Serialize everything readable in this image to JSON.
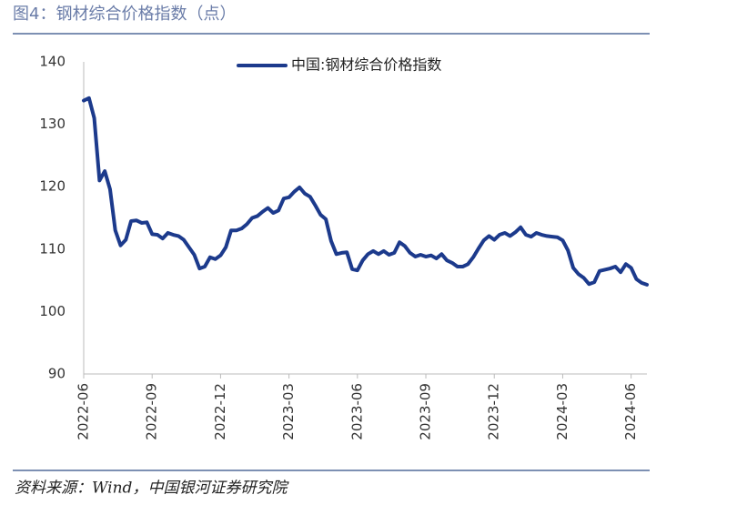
{
  "chart_data": {
    "type": "line",
    "title": "图4：钢材综合价格指数（点）",
    "source": "资料来源：Wind，中国银河证券研究院",
    "categories": [
      "2022-06",
      null,
      null,
      null,
      null,
      null,
      null,
      null,
      null,
      null,
      null,
      null,
      null,
      "2022-09",
      null,
      null,
      null,
      null,
      null,
      null,
      null,
      null,
      null,
      null,
      null,
      null,
      "2022-12",
      null,
      null,
      null,
      null,
      null,
      null,
      null,
      null,
      null,
      null,
      null,
      null,
      "2023-03",
      null,
      null,
      null,
      null,
      null,
      null,
      null,
      null,
      null,
      null,
      null,
      null,
      "2023-06",
      null,
      null,
      null,
      null,
      null,
      null,
      null,
      null,
      null,
      null,
      null,
      null,
      "2023-09",
      null,
      null,
      null,
      null,
      null,
      null,
      null,
      null,
      null,
      null,
      null,
      null,
      "2023-12",
      null,
      null,
      null,
      null,
      null,
      null,
      null,
      null,
      null,
      null,
      null,
      null,
      "2024-03",
      null,
      null,
      null,
      null,
      null,
      null,
      null,
      null,
      null,
      null,
      null,
      null,
      "2024-06",
      null,
      null,
      null
    ],
    "series": [
      {
        "name": "中国:钢材综合价格指数",
        "color": "#1c3a8c",
        "values": [
          133.8,
          134.2,
          131,
          121,
          122.5,
          119.6,
          113,
          110.6,
          111.5,
          114.5,
          114.6,
          114.2,
          114.3,
          112.4,
          112.3,
          111.7,
          112.6,
          112.3,
          112.1,
          111.5,
          110.3,
          109.1,
          106.9,
          107.2,
          108.7,
          108.4,
          109,
          110.3,
          113,
          113,
          113.3,
          114,
          115,
          115.3,
          116,
          116.6,
          115.8,
          116.2,
          118.1,
          118.3,
          119.2,
          119.9,
          118.9,
          118.4,
          117,
          115.5,
          114.8,
          111.3,
          109.2,
          109.4,
          109.5,
          106.8,
          106.6,
          108.2,
          109.2,
          109.7,
          109.2,
          109.7,
          109.1,
          109.4,
          111.1,
          110.5,
          109.4,
          108.8,
          109.1,
          108.8,
          109,
          108.5,
          109.2,
          108.2,
          107.8,
          107.2,
          107.2,
          107.6,
          108.7,
          110.1,
          111.4,
          112.1,
          111.5,
          112.3,
          112.6,
          112.1,
          112.7,
          113.5,
          112.3,
          112,
          112.6,
          112.3,
          112.1,
          112,
          111.9,
          111.4,
          109.8,
          107,
          106,
          105.4,
          104.4,
          104.7,
          106.5,
          106.7,
          106.9,
          107.2,
          106.3,
          107.6,
          107,
          105.2,
          104.6,
          104.3
        ]
      }
    ],
    "ylim": [
      90,
      140
    ],
    "yticks": [
      90,
      100,
      110,
      120,
      130,
      140
    ],
    "grid": false,
    "legend": "top"
  }
}
